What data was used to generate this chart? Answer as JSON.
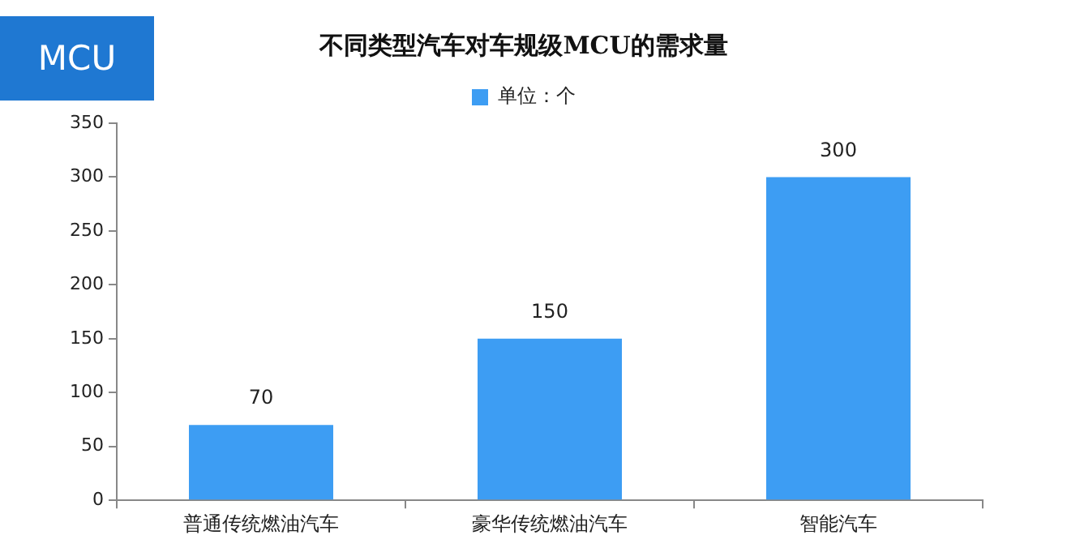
{
  "chart_data": {
    "type": "bar",
    "title": "不同类型汽车对车规级MCU的需求量",
    "categories": [
      "普通传统燃油汽车",
      "豪华传统燃油汽车",
      "智能汽车"
    ],
    "series": [
      {
        "name": "单位：个",
        "color": "#3d9df3",
        "values": [
          70,
          150,
          300
        ]
      }
    ],
    "ylim": [
      0,
      350
    ],
    "yticks": [
      0,
      50,
      100,
      150,
      200,
      250,
      300,
      350
    ],
    "grid": false,
    "legend": "top",
    "data_labels": true,
    "annotations": [
      "MCU"
    ]
  }
}
